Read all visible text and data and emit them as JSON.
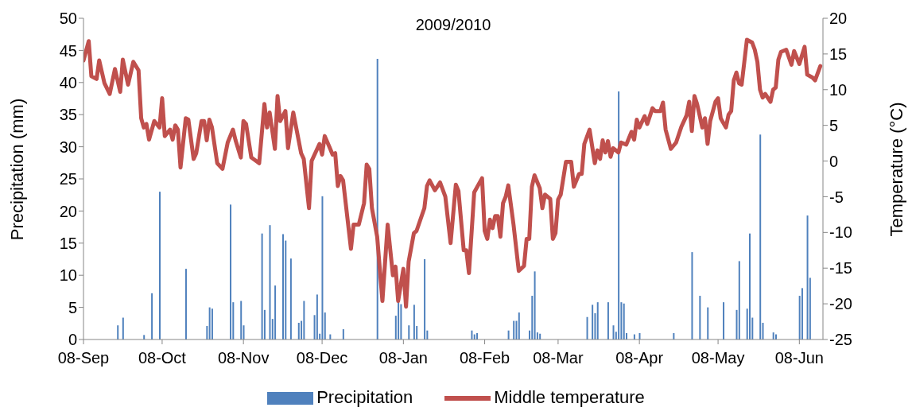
{
  "chart_data": {
    "type": "line",
    "title": "2009/2010",
    "ylabel": "Precipitation (mm)",
    "y2label": "Temperature (°C)",
    "xlim": [
      "2009-09-08",
      "2010-06-17"
    ],
    "xticks": [
      {
        "value": "2009-09-08",
        "label": "08-Sep"
      },
      {
        "value": "2009-10-08",
        "label": "08-Oct"
      },
      {
        "value": "2009-11-08",
        "label": "08-Nov"
      },
      {
        "value": "2009-12-08",
        "label": "08-Dec"
      },
      {
        "value": "2010-01-08",
        "label": "08-Jan"
      },
      {
        "value": "2010-02-08",
        "label": "08-Feb"
      },
      {
        "value": "2010-03-08",
        "label": "08-Mar"
      },
      {
        "value": "2010-04-08",
        "label": "08-Apr"
      },
      {
        "value": "2010-05-08",
        "label": "08-May"
      },
      {
        "value": "2010-06-08",
        "label": "08-Jun"
      }
    ],
    "ylim": [
      0,
      50
    ],
    "yticks": [
      0,
      5,
      10,
      15,
      20,
      25,
      30,
      35,
      40,
      45,
      50
    ],
    "y2lim": [
      -25,
      20
    ],
    "y2ticks": [
      -25,
      -20,
      -15,
      -10,
      -5,
      0,
      5,
      10,
      15,
      20
    ],
    "legend": "bottom",
    "grid": false,
    "series": [
      {
        "name": "Precipitation",
        "type": "bar",
        "color": "#4f81bd",
        "x": [
          "2009-09-21",
          "2009-09-23",
          "2009-10-01",
          "2009-10-04",
          "2009-10-07",
          "2009-10-17",
          "2009-10-25",
          "2009-10-26",
          "2009-10-27",
          "2009-11-03",
          "2009-11-04",
          "2009-11-07",
          "2009-11-08",
          "2009-11-15",
          "2009-11-16",
          "2009-11-18",
          "2009-11-19",
          "2009-11-20",
          "2009-11-23",
          "2009-11-24",
          "2009-11-26",
          "2009-11-29",
          "2009-11-30",
          "2009-12-01",
          "2009-12-05",
          "2009-12-06",
          "2009-12-07",
          "2009-12-08",
          "2009-12-09",
          "2009-12-11",
          "2009-12-16",
          "2009-12-29",
          "2010-01-05",
          "2010-01-06",
          "2010-01-07",
          "2010-01-10",
          "2010-01-12",
          "2010-01-13",
          "2010-01-16",
          "2010-01-17",
          "2010-02-03",
          "2010-02-04",
          "2010-02-05",
          "2010-02-17",
          "2010-02-19",
          "2010-02-20",
          "2010-02-21",
          "2010-02-25",
          "2010-02-26",
          "2010-02-27",
          "2010-02-28",
          "2010-03-01",
          "2010-03-19",
          "2010-03-21",
          "2010-03-22",
          "2010-03-23",
          "2010-03-27",
          "2010-03-29",
          "2010-03-30",
          "2010-03-31",
          "2010-04-01",
          "2010-04-02",
          "2010-04-03",
          "2010-04-06",
          "2010-04-08",
          "2010-04-21",
          "2010-04-28",
          "2010-05-01",
          "2010-05-04",
          "2010-05-10",
          "2010-05-15",
          "2010-05-16",
          "2010-05-19",
          "2010-05-20",
          "2010-05-21",
          "2010-05-24",
          "2010-05-25",
          "2010-05-29",
          "2010-05-30",
          "2010-06-08",
          "2010-06-09",
          "2010-06-11",
          "2010-06-12"
        ],
        "values": [
          2.2,
          3.4,
          0.7,
          7.2,
          23,
          11,
          2.1,
          5,
          4.8,
          21,
          5.8,
          6,
          2.2,
          16.5,
          4.6,
          17.8,
          3.2,
          8.4,
          16.4,
          15.4,
          12.6,
          2.6,
          2.9,
          6,
          3.8,
          7,
          0.9,
          22.3,
          4.2,
          0.8,
          1.6,
          43.7,
          3.7,
          6,
          5.5,
          2.2,
          5.4,
          2.1,
          12.5,
          1.4,
          1.4,
          0.8,
          1,
          1.4,
          2.9,
          2.9,
          4.2,
          1.4,
          6.8,
          10.6,
          1.1,
          0.9,
          3.5,
          5.4,
          4.1,
          5.8,
          5.8,
          2.2,
          1.2,
          38.6,
          5.8,
          5.6,
          1,
          0.8,
          1,
          1,
          13.6,
          6.8,
          5,
          5.8,
          4.6,
          12.2,
          4.8,
          16.5,
          3.4,
          31.9,
          2.6,
          1.1,
          0.8,
          6.8,
          8,
          19.3,
          9.6
        ]
      },
      {
        "name": "Middle temperature",
        "axis": "y2",
        "color": "#c0504d",
        "x": [
          "2009-09-08",
          "2009-09-10",
          "2009-09-11",
          "2009-09-13",
          "2009-09-14",
          "2009-09-16",
          "2009-09-18",
          "2009-09-20",
          "2009-09-22",
          "2009-09-23",
          "2009-09-25",
          "2009-09-27",
          "2009-09-29",
          "2009-09-30",
          "2009-10-01",
          "2009-10-02",
          "2009-10-03",
          "2009-10-05",
          "2009-10-07",
          "2009-10-08",
          "2009-10-09",
          "2009-10-11",
          "2009-10-12",
          "2009-10-13",
          "2009-10-14",
          "2009-10-15",
          "2009-10-17",
          "2009-10-18",
          "2009-10-20",
          "2009-10-21",
          "2009-10-23",
          "2009-10-24",
          "2009-10-25",
          "2009-10-26",
          "2009-10-27",
          "2009-10-29",
          "2009-10-31",
          "2009-11-02",
          "2009-11-04",
          "2009-11-05",
          "2009-11-07",
          "2009-11-08",
          "2009-11-09",
          "2009-11-11",
          "2009-11-14",
          "2009-11-16",
          "2009-11-17",
          "2009-11-18",
          "2009-11-20",
          "2009-11-21",
          "2009-11-22",
          "2009-11-24",
          "2009-11-25",
          "2009-11-27",
          "2009-11-30",
          "2009-12-01",
          "2009-12-03",
          "2009-12-04",
          "2009-12-07",
          "2009-12-08",
          "2009-12-09",
          "2009-12-11",
          "2009-12-12",
          "2009-12-13",
          "2009-12-14",
          "2009-12-15",
          "2009-12-16",
          "2009-12-19",
          "2009-12-20",
          "2009-12-22",
          "2009-12-24",
          "2009-12-25",
          "2009-12-26",
          "2009-12-27",
          "2009-12-29",
          "2009-12-31",
          "2010-01-02",
          "2010-01-04",
          "2010-01-05",
          "2010-01-06",
          "2010-01-08",
          "2010-01-09",
          "2010-01-10",
          "2010-01-12",
          "2010-01-13",
          "2010-01-16",
          "2010-01-17",
          "2010-01-18",
          "2010-01-20",
          "2010-01-22",
          "2010-01-24",
          "2010-01-26",
          "2010-01-28",
          "2010-01-29",
          "2010-01-31",
          "2010-02-01",
          "2010-02-02",
          "2010-02-04",
          "2010-02-07",
          "2010-02-08",
          "2010-02-09",
          "2010-02-10",
          "2010-02-11",
          "2010-02-12",
          "2010-02-13",
          "2010-02-14",
          "2010-02-15",
          "2010-02-16",
          "2010-02-17",
          "2010-02-19",
          "2010-02-21",
          "2010-02-23",
          "2010-02-24",
          "2010-02-25",
          "2010-02-26",
          "2010-02-27",
          "2010-03-01",
          "2010-03-02",
          "2010-03-03",
          "2010-03-05",
          "2010-03-06",
          "2010-03-07",
          "2010-03-08",
          "2010-03-09",
          "2010-03-11",
          "2010-03-13",
          "2010-03-14",
          "2010-03-16",
          "2010-03-17",
          "2010-03-18",
          "2010-03-20",
          "2010-03-22",
          "2010-03-23",
          "2010-03-24",
          "2010-03-25",
          "2010-03-26",
          "2010-03-27",
          "2010-03-28",
          "2010-03-29",
          "2010-03-31",
          "2010-04-01",
          "2010-04-03",
          "2010-04-05",
          "2010-04-06",
          "2010-04-07",
          "2010-04-08",
          "2010-04-10",
          "2010-04-11",
          "2010-04-13",
          "2010-04-14",
          "2010-04-16",
          "2010-04-17",
          "2010-04-18",
          "2010-04-20",
          "2010-04-22",
          "2010-04-24",
          "2010-04-26",
          "2010-04-27",
          "2010-04-28",
          "2010-04-29",
          "2010-04-30",
          "2010-05-02",
          "2010-05-03",
          "2010-05-04",
          "2010-05-05",
          "2010-05-07",
          "2010-05-08",
          "2010-05-09",
          "2010-05-11",
          "2010-05-12",
          "2010-05-13",
          "2010-05-14",
          "2010-05-15",
          "2010-05-16",
          "2010-05-17",
          "2010-05-19",
          "2010-05-21",
          "2010-05-22",
          "2010-05-23",
          "2010-05-24",
          "2010-05-25",
          "2010-05-26",
          "2010-05-28",
          "2010-05-29",
          "2010-05-30",
          "2010-05-31",
          "2010-06-01",
          "2010-06-03",
          "2010-06-05",
          "2010-06-06",
          "2010-06-08",
          "2010-06-10",
          "2010-06-11",
          "2010-06-13",
          "2010-06-14",
          "2010-06-16"
        ],
        "values": [
          14.1,
          16.8,
          11.9,
          11.5,
          14.1,
          10.9,
          9.4,
          12.9,
          9.7,
          14.2,
          10.7,
          13.9,
          12.7,
          6.0,
          4.7,
          5.2,
          3.0,
          5.6,
          4.7,
          8.8,
          3.5,
          4.4,
          3.0,
          5.0,
          4.4,
          -0.9,
          6.0,
          5.8,
          0.3,
          1.1,
          5.6,
          5.6,
          2.9,
          5.8,
          4.7,
          -0.3,
          -1.1,
          2.6,
          4.4,
          2.9,
          0.5,
          5.6,
          5.2,
          0.5,
          -0.3,
          8.0,
          4.7,
          6.8,
          1.7,
          9.1,
          5.6,
          7.0,
          1.8,
          6.8,
          1.1,
          0.3,
          -6.6,
          0.0,
          2.4,
          0.9,
          3.5,
          1.8,
          0.9,
          1.1,
          -3.5,
          -2.1,
          -2.7,
          -12.3,
          -8.9,
          -8.9,
          -5.9,
          -0.5,
          -1.1,
          -6.6,
          -10.6,
          -19.6,
          -8.9,
          -16.0,
          -14.8,
          -19.6,
          -15.1,
          -20.4,
          -14.1,
          -10.1,
          -9.8,
          -6.6,
          -3.5,
          -2.7,
          -4.1,
          -3.0,
          -5.0,
          -11.5,
          -3.3,
          -4.2,
          -12.5,
          -12.5,
          -15.7,
          -4.4,
          -2.4,
          -9.8,
          -10.9,
          -8.2,
          -9.4,
          -7.7,
          -7.7,
          -10.6,
          -5.9,
          -5.0,
          -3.4,
          -8.9,
          -15.4,
          -14.7,
          -10.9,
          -10.9,
          -3.6,
          -2.0,
          -3.8,
          -6.6,
          -4.7,
          -5.3,
          -10.9,
          -10.1,
          -5.4,
          -4.7,
          -0.1,
          -0.1,
          -3.6,
          -1.8,
          -1.8,
          2.4,
          4.4,
          -0.3,
          1.5,
          0.3,
          2.9,
          1.2,
          2.8,
          0.6,
          1.8,
          1.2,
          2.6,
          2.3,
          4.1,
          3.0,
          5.8,
          4.7,
          6.3,
          5.2,
          7.4,
          7.0,
          7.0,
          8.2,
          4.4,
          1.7,
          2.6,
          4.8,
          6.4,
          8.3,
          4.2,
          9.1,
          8.0,
          4.7,
          6.0,
          2.4,
          5.6,
          8.3,
          8.8,
          6.0,
          4.7,
          6.5,
          7.0,
          11.3,
          12.4,
          10.9,
          10.7,
          17.0,
          16.6,
          15.6,
          13.9,
          10.0,
          8.9,
          9.4,
          8.3,
          10.0,
          10.3,
          14.2,
          15.3,
          15.6,
          13.5,
          15.4,
          13.6,
          16.0,
          12.1,
          11.7,
          11.3,
          13.3
        ]
      }
    ]
  }
}
